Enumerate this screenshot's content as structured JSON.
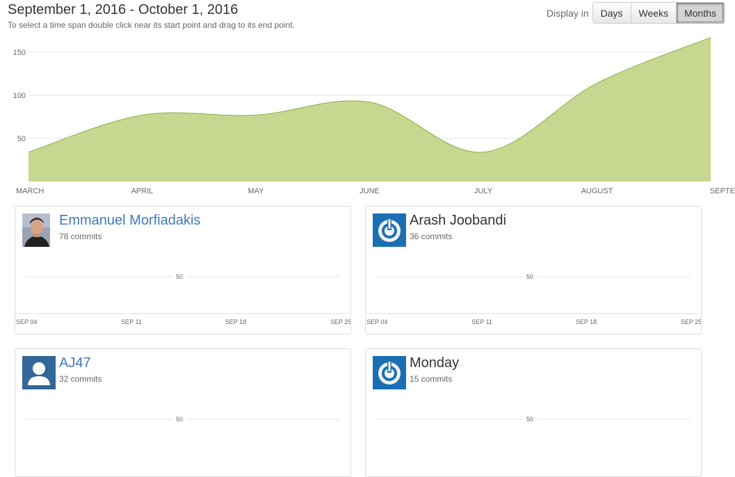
{
  "header": {
    "title": "September 1, 2016 - October 1, 2016",
    "hint": "To select a time span double click near its start point and drag to its end point.",
    "display_label": "Display in",
    "buttons": [
      {
        "label": "Days",
        "active": false
      },
      {
        "label": "Weeks",
        "active": false
      },
      {
        "label": "Months",
        "active": true
      }
    ]
  },
  "chart_data": {
    "type": "area",
    "categories": [
      "MARCH",
      "APRIL",
      "MAY",
      "JUNE",
      "JULY",
      "AUGUST",
      "SEPTE"
    ],
    "values": [
      34,
      77,
      77,
      92,
      34,
      114,
      167
    ],
    "yticks": [
      50,
      100,
      150
    ],
    "ylim": [
      0,
      175
    ],
    "grid": true,
    "color": "#c6d890",
    "stroke": "#8cac3c"
  },
  "contributors": [
    {
      "name": "Emmanuel Morfiadakis",
      "commits": "78 commits",
      "linked": true,
      "avatar": "user-photo-icon",
      "gridline": "50",
      "xticks": [
        "SEP 04",
        "SEP 11",
        "SEP 18",
        "SEP 25"
      ]
    },
    {
      "name": "Arash Joobandi",
      "commits": "36 commits",
      "linked": false,
      "avatar": "power-icon",
      "gridline": "50",
      "xticks": [
        "SEP 04",
        "SEP 11",
        "SEP 18",
        "SEP 25"
      ]
    },
    {
      "name": "AJ47",
      "commits": "32 commits",
      "linked": true,
      "avatar": "default-user-icon",
      "gridline": "50"
    },
    {
      "name": "Monday",
      "commits": "15 commits",
      "linked": false,
      "avatar": "power-icon",
      "gridline": "50"
    }
  ],
  "colors": {
    "avatar_blue": "#1a6fb3",
    "default_avatar": "#336699",
    "link": "#4078c0"
  }
}
